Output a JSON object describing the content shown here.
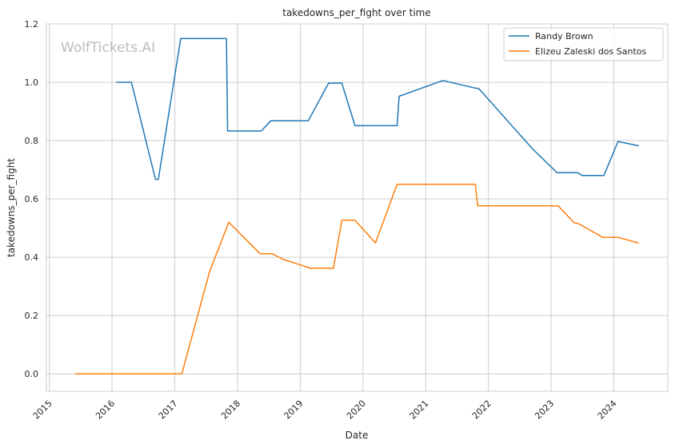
{
  "chart_data": {
    "type": "line",
    "title": "takedowns_per_fight over time",
    "xlabel": "Date",
    "ylabel": "takedowns_per_fight",
    "watermark": "WolfTickets.AI",
    "xlim": [
      "2014-12-15",
      "2024-11-10"
    ],
    "ylim": [
      -0.06,
      1.2
    ],
    "x_ticks": [
      "2015",
      "2016",
      "2017",
      "2018",
      "2019",
      "2020",
      "2021",
      "2022",
      "2023",
      "2024"
    ],
    "y_ticks": [
      "0.0",
      "0.2",
      "0.4",
      "0.6",
      "0.8",
      "1.0",
      "1.2"
    ],
    "grid": true,
    "legend_position": "top-right",
    "series": [
      {
        "name": "Randy Brown",
        "color": "#1f77b4",
        "points": [
          [
            "2016-01-25",
            1.0
          ],
          [
            "2016-04-23",
            1.0
          ],
          [
            "2016-09-10",
            0.667
          ],
          [
            "2016-09-27",
            0.667
          ],
          [
            "2017-02-04",
            1.15
          ],
          [
            "2017-10-28",
            1.15
          ],
          [
            "2017-11-04",
            0.833
          ],
          [
            "2018-05-19",
            0.833
          ],
          [
            "2018-07-14",
            0.868
          ],
          [
            "2019-02-17",
            0.868
          ],
          [
            "2019-06-15",
            0.997
          ],
          [
            "2019-08-31",
            0.997
          ],
          [
            "2019-11-16",
            0.851
          ],
          [
            "2020-07-18",
            0.851
          ],
          [
            "2020-07-30",
            0.952
          ],
          [
            "2021-04-10",
            1.006
          ],
          [
            "2021-10-16",
            0.98
          ],
          [
            "2021-11-06",
            0.978
          ],
          [
            "2022-09-17",
            0.77
          ],
          [
            "2023-02-04",
            0.69
          ],
          [
            "2023-06-03",
            0.69
          ],
          [
            "2023-07-01",
            0.68
          ],
          [
            "2023-11-04",
            0.68
          ],
          [
            "2024-01-25",
            0.797
          ],
          [
            "2024-05-25",
            0.782
          ]
        ]
      },
      {
        "name": "Elizeu Zaleski dos Santos",
        "color": "#ff7f0e",
        "points": [
          [
            "2015-05-30",
            0.0
          ],
          [
            "2017-02-11",
            0.0
          ],
          [
            "2017-07-22",
            0.35
          ],
          [
            "2017-11-11",
            0.52
          ],
          [
            "2018-05-12",
            0.412
          ],
          [
            "2018-07-21",
            0.412
          ],
          [
            "2018-09-22",
            0.393
          ],
          [
            "2019-03-01",
            0.362
          ],
          [
            "2019-07-13",
            0.362
          ],
          [
            "2019-08-31",
            0.527
          ],
          [
            "2019-11-16",
            0.527
          ],
          [
            "2020-03-14",
            0.449
          ],
          [
            "2020-07-18",
            0.65
          ],
          [
            "2021-10-16",
            0.65
          ],
          [
            "2021-10-30",
            0.576
          ],
          [
            "2023-02-11",
            0.576
          ],
          [
            "2023-05-13",
            0.519
          ],
          [
            "2023-06-10",
            0.515
          ],
          [
            "2023-10-28",
            0.468
          ],
          [
            "2024-01-27",
            0.468
          ],
          [
            "2024-05-25",
            0.448
          ]
        ]
      }
    ]
  }
}
